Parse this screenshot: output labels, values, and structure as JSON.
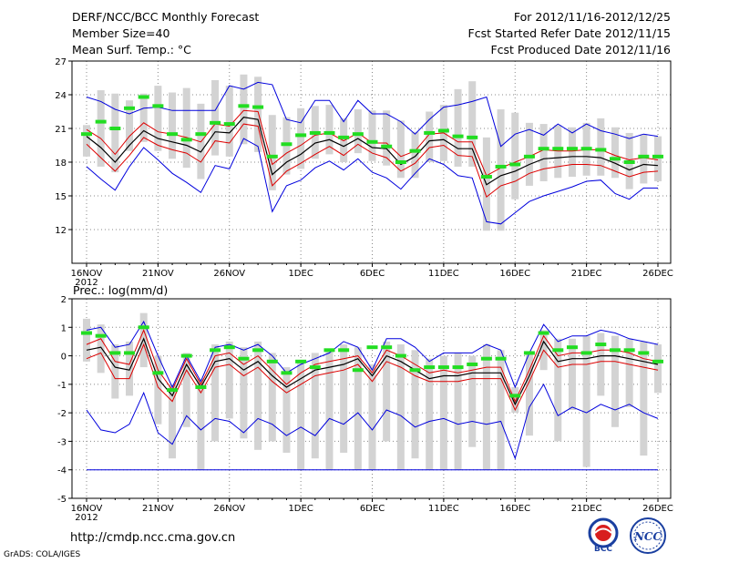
{
  "header": {
    "title": "DERF/NCC/BCC Monthly Forecast",
    "member_size": "Member Size=40",
    "variable": "Mean Surf. Temp.: °C",
    "period": "For 2012/11/16-2012/12/25",
    "start_date": "Fcst Started Refer Date 2012/11/15",
    "produced_date": "Fcst Produced Date 2012/11/16"
  },
  "footer": {
    "url": "http://cmdp.ncc.cma.gov.cn",
    "credit": "GrADS: COLA/IGES"
  },
  "logos": {
    "bcc": "BCC",
    "ncc": "NCC"
  },
  "colors": {
    "box": "#d3d3d3",
    "median": "#22dd22",
    "max_min": "#0000dd",
    "spread": "#dd0000",
    "mean": "#000000",
    "grid": "#888888"
  },
  "chart_data": [
    {
      "type": "line",
      "title": "Mean Surf. Temp.: °C",
      "x_day_start": 1,
      "x_day_end": 41,
      "xticks": [
        {
          "day": 1,
          "label": "16NOV",
          "sub": "2012"
        },
        {
          "day": 6,
          "label": "21NOV"
        },
        {
          "day": 11,
          "label": "26NOV"
        },
        {
          "day": 16,
          "label": "1DEC"
        },
        {
          "day": 21,
          "label": "6DEC"
        },
        {
          "day": 26,
          "label": "11DEC"
        },
        {
          "day": 31,
          "label": "16DEC"
        },
        {
          "day": 36,
          "label": "21DEC"
        },
        {
          "day": 41,
          "label": "26DEC"
        }
      ],
      "ylim": [
        9,
        27
      ],
      "yticks": [
        12,
        15,
        18,
        21,
        24,
        27
      ],
      "series": [
        {
          "name": "Max",
          "values": [
            23.8,
            23.4,
            22.7,
            22.3,
            22.8,
            22.9,
            22.6,
            22.6,
            22.6,
            22.6,
            24.8,
            24.5,
            25.1,
            24.9,
            21.8,
            21.5,
            23.5,
            23.5,
            21.6,
            23.5,
            22.3,
            22.3,
            21.6,
            20.5,
            21.8,
            22.9,
            23.1,
            23.4,
            23.8,
            19.4,
            20.5,
            20.9,
            20.4,
            21.4,
            20.6,
            21.4,
            20.8,
            20.5,
            20.1,
            20.5,
            20.3
          ]
        },
        {
          "name": "Mean+SD",
          "values": [
            20.9,
            20.1,
            18.7,
            20.3,
            21.5,
            20.7,
            20.5,
            20.2,
            19.8,
            21.4,
            21.2,
            22.6,
            22.5,
            17.8,
            18.8,
            19.5,
            20.4,
            20.6,
            19.9,
            20.6,
            19.7,
            19.7,
            18.5,
            19.0,
            20.5,
            20.6,
            19.8,
            19.8,
            16.8,
            17.5,
            18.0,
            18.5,
            19.1,
            19.0,
            19.0,
            19.1,
            19.1,
            18.6,
            18.2,
            18.4,
            18.2
          ]
        },
        {
          "name": "Mean",
          "values": [
            20.3,
            19.3,
            18.0,
            19.5,
            20.8,
            20.1,
            19.8,
            19.5,
            18.9,
            20.7,
            20.6,
            22.0,
            21.8,
            16.9,
            18.0,
            18.7,
            19.7,
            20.0,
            19.4,
            20.1,
            19.3,
            19.2,
            17.8,
            18.5,
            19.9,
            20.0,
            19.2,
            19.2,
            16.0,
            16.8,
            17.2,
            17.8,
            18.3,
            18.4,
            18.5,
            18.5,
            18.4,
            17.9,
            17.3,
            17.8,
            17.7
          ]
        },
        {
          "name": "Mean-SD",
          "values": [
            19.6,
            18.4,
            17.2,
            18.6,
            20.2,
            19.5,
            19.1,
            18.8,
            18.0,
            19.9,
            19.7,
            21.4,
            21.2,
            15.9,
            17.2,
            17.9,
            18.7,
            19.4,
            18.6,
            19.6,
            18.8,
            18.4,
            17.2,
            17.9,
            19.3,
            19.5,
            18.6,
            18.5,
            14.9,
            15.9,
            16.3,
            17.0,
            17.4,
            17.6,
            17.8,
            17.8,
            17.7,
            17.2,
            16.7,
            17.1,
            17.2
          ]
        },
        {
          "name": "Min",
          "values": [
            17.6,
            16.5,
            15.5,
            17.6,
            19.3,
            18.2,
            17.0,
            16.2,
            15.3,
            17.7,
            17.4,
            20.1,
            19.4,
            13.6,
            15.9,
            16.4,
            17.5,
            18.1,
            17.3,
            18.3,
            17.1,
            16.6,
            15.6,
            17.0,
            18.3,
            17.8,
            16.8,
            16.6,
            12.7,
            12.5,
            13.5,
            14.5,
            15.0,
            15.4,
            15.8,
            16.3,
            16.4,
            15.2,
            14.7,
            15.7,
            15.7
          ]
        },
        {
          "name": "Median",
          "values": [
            20.5,
            21.6,
            21.0,
            22.8,
            23.8,
            23.0,
            20.5,
            20.0,
            20.5,
            21.5,
            21.4,
            23.0,
            22.9,
            18.5,
            19.6,
            20.4,
            20.6,
            20.6,
            20.2,
            20.5,
            19.8,
            19.4,
            18.0,
            19.0,
            20.6,
            20.8,
            20.3,
            20.2,
            16.7,
            17.6,
            17.8,
            18.5,
            19.2,
            19.2,
            19.2,
            19.2,
            19.1,
            18.3,
            18.0,
            18.5,
            18.5
          ]
        },
        {
          "name": "Box upper",
          "values": [
            21.3,
            24.4,
            24.1,
            23.5,
            24.1,
            24.8,
            24.2,
            24.6,
            23.2,
            25.3,
            24.8,
            25.8,
            25.6,
            22.2,
            22.0,
            22.8,
            23.0,
            23.1,
            21.9,
            22.7,
            22.6,
            22.6,
            21.7,
            20.7,
            22.5,
            23.1,
            24.5,
            25.2,
            20.2,
            22.7,
            22.4,
            21.5,
            21.4,
            21.3,
            21.1,
            21.5,
            21.9,
            21.1,
            20.6,
            20.5,
            20.3
          ]
        },
        {
          "name": "Box lower",
          "values": [
            18.5,
            17.6,
            17.1,
            19.0,
            19.8,
            19.0,
            18.3,
            17.5,
            16.5,
            18.6,
            18.5,
            19.6,
            18.9,
            15.5,
            16.9,
            17.4,
            18.3,
            18.7,
            18.0,
            18.8,
            18.1,
            17.7,
            16.6,
            16.6,
            18.0,
            18.1,
            17.6,
            17.6,
            11.9,
            11.9,
            14.7,
            15.9,
            16.3,
            16.6,
            16.7,
            16.8,
            16.8,
            16.6,
            15.6,
            16.1,
            16.3
          ]
        }
      ]
    },
    {
      "type": "line",
      "title": "Prec.: log(mm/d)",
      "x_day_start": 1,
      "x_day_end": 41,
      "xticks": [
        {
          "day": 1,
          "label": "16NOV",
          "sub": "2012"
        },
        {
          "day": 6,
          "label": "21NOV"
        },
        {
          "day": 11,
          "label": "26NOV"
        },
        {
          "day": 16,
          "label": "1DEC"
        },
        {
          "day": 21,
          "label": "6DEC"
        },
        {
          "day": 26,
          "label": "11DEC"
        },
        {
          "day": 31,
          "label": "16DEC"
        },
        {
          "day": 36,
          "label": "21DEC"
        },
        {
          "day": 41,
          "label": "26DEC"
        }
      ],
      "ylim": [
        -5,
        2
      ],
      "yticks": [
        -5,
        -4,
        -3,
        -2,
        -1,
        0,
        1,
        2
      ],
      "series": [
        {
          "name": "Max",
          "values": [
            0.9,
            1.0,
            0.3,
            0.4,
            1.2,
            0.0,
            -1.1,
            0.0,
            -0.9,
            0.3,
            0.4,
            0.2,
            0.4,
            0.0,
            -0.6,
            -0.3,
            -0.1,
            0.1,
            0.5,
            0.3,
            -0.5,
            0.6,
            0.6,
            0.3,
            -0.2,
            0.1,
            0.1,
            0.1,
            0.4,
            0.2,
            -1.1,
            0.1,
            1.1,
            0.5,
            0.7,
            0.7,
            0.9,
            0.8,
            0.6,
            0.5,
            0.4
          ]
        },
        {
          "name": "Mean+SD",
          "values": [
            0.4,
            0.6,
            -0.2,
            -0.3,
            0.9,
            -0.5,
            -1.2,
            -0.1,
            -1.0,
            0.0,
            0.1,
            -0.3,
            0.0,
            -0.5,
            -1.0,
            -0.6,
            -0.3,
            -0.2,
            -0.1,
            0.0,
            -0.6,
            0.2,
            0.0,
            -0.3,
            -0.6,
            -0.5,
            -0.6,
            -0.5,
            -0.4,
            -0.4,
            -1.6,
            -0.5,
            0.7,
            0.0,
            0.1,
            0.1,
            0.2,
            0.2,
            0.1,
            -0.1,
            -0.2
          ]
        },
        {
          "name": "Mean",
          "values": [
            0.2,
            0.3,
            -0.4,
            -0.5,
            0.6,
            -0.8,
            -1.4,
            -0.3,
            -1.1,
            -0.2,
            -0.1,
            -0.5,
            -0.2,
            -0.7,
            -1.1,
            -0.8,
            -0.5,
            -0.4,
            -0.3,
            -0.1,
            -0.7,
            0.0,
            -0.2,
            -0.5,
            -0.8,
            -0.7,
            -0.7,
            -0.6,
            -0.6,
            -0.6,
            -1.7,
            -0.7,
            0.5,
            -0.2,
            -0.1,
            -0.1,
            0.0,
            0.0,
            -0.1,
            -0.2,
            -0.3
          ]
        },
        {
          "name": "Mean-SD",
          "values": [
            -0.1,
            0.1,
            -0.8,
            -0.8,
            0.4,
            -1.1,
            -1.6,
            -0.5,
            -1.3,
            -0.4,
            -0.3,
            -0.7,
            -0.4,
            -0.9,
            -1.3,
            -1.0,
            -0.7,
            -0.6,
            -0.5,
            -0.3,
            -0.9,
            -0.2,
            -0.4,
            -0.7,
            -0.9,
            -0.9,
            -0.9,
            -0.8,
            -0.8,
            -0.8,
            -1.9,
            -0.9,
            0.2,
            -0.4,
            -0.3,
            -0.3,
            -0.2,
            -0.2,
            -0.3,
            -0.4,
            -0.5
          ]
        },
        {
          "name": "Min",
          "values": [
            -1.9,
            -2.6,
            -2.7,
            -2.4,
            -1.3,
            -2.7,
            -3.1,
            -2.1,
            -2.6,
            -2.2,
            -2.3,
            -2.7,
            -2.2,
            -2.4,
            -2.8,
            -2.5,
            -2.8,
            -2.2,
            -2.4,
            -2.0,
            -2.6,
            -1.9,
            -2.1,
            -2.5,
            -2.3,
            -2.2,
            -2.4,
            -2.3,
            -2.4,
            -2.3,
            -3.6,
            -1.8,
            -1.0,
            -2.1,
            -1.8,
            -2.0,
            -1.7,
            -1.9,
            -1.7,
            -2.0,
            -2.2
          ]
        },
        {
          "name": "Lower bound",
          "values": [
            -4,
            -4,
            -4,
            -4,
            -4,
            -4,
            -4,
            -4,
            -4,
            -4,
            -4,
            -4,
            -4,
            -4,
            -4,
            -4,
            -4,
            -4,
            -4,
            -4,
            -4,
            -4,
            -4,
            -4,
            -4,
            -4,
            -4,
            -4,
            -4,
            -4,
            -4,
            -4,
            -4,
            -4,
            -4,
            -4,
            -4,
            -4,
            -4,
            -4,
            -4
          ]
        },
        {
          "name": "Median",
          "values": [
            0.8,
            0.7,
            0.1,
            0.1,
            1.0,
            -0.6,
            -1.2,
            0.0,
            -1.1,
            0.2,
            0.3,
            -0.1,
            0.2,
            -0.2,
            -0.6,
            -0.2,
            -0.4,
            0.2,
            0.2,
            -0.5,
            0.3,
            0.3,
            0.0,
            -0.5,
            -0.4,
            -0.4,
            -0.4,
            -0.3,
            -0.1,
            -0.1,
            -1.4,
            0.1,
            0.8,
            0.2,
            0.3,
            0.1,
            0.4,
            0.2,
            0.2,
            0.1,
            -0.2
          ]
        },
        {
          "name": "Box upper",
          "values": [
            1.3,
            1.1,
            0.4,
            0.5,
            1.5,
            0.0,
            -1.0,
            0.1,
            -0.8,
            0.4,
            0.5,
            0.3,
            0.5,
            0.1,
            -0.4,
            -0.2,
            0.1,
            0.2,
            0.4,
            0.3,
            -0.3,
            0.5,
            0.4,
            0.2,
            -0.1,
            0.0,
            0.1,
            0.0,
            0.4,
            0.2,
            -1.1,
            0.1,
            0.9,
            0.6,
            0.6,
            0.7,
            0.8,
            0.7,
            0.6,
            0.5,
            0.4
          ]
        },
        {
          "name": "Box lower",
          "values": [
            -0.2,
            -0.6,
            -1.5,
            -1.4,
            -0.4,
            -2.4,
            -3.6,
            -2.5,
            -4.0,
            -3.0,
            -2.2,
            -2.9,
            -3.3,
            -3.0,
            -3.4,
            -4.0,
            -3.6,
            -4.0,
            -3.4,
            -4.0,
            -4.0,
            -3.0,
            -4.0,
            -3.6,
            -4.0,
            -4.0,
            -4.0,
            -3.2,
            -4.0,
            -4.0,
            -2.0,
            -2.8,
            -0.5,
            -3.0,
            -1.9,
            -3.9,
            -1.4,
            -2.5,
            -1.8,
            -3.5,
            -1.3
          ]
        }
      ]
    }
  ]
}
